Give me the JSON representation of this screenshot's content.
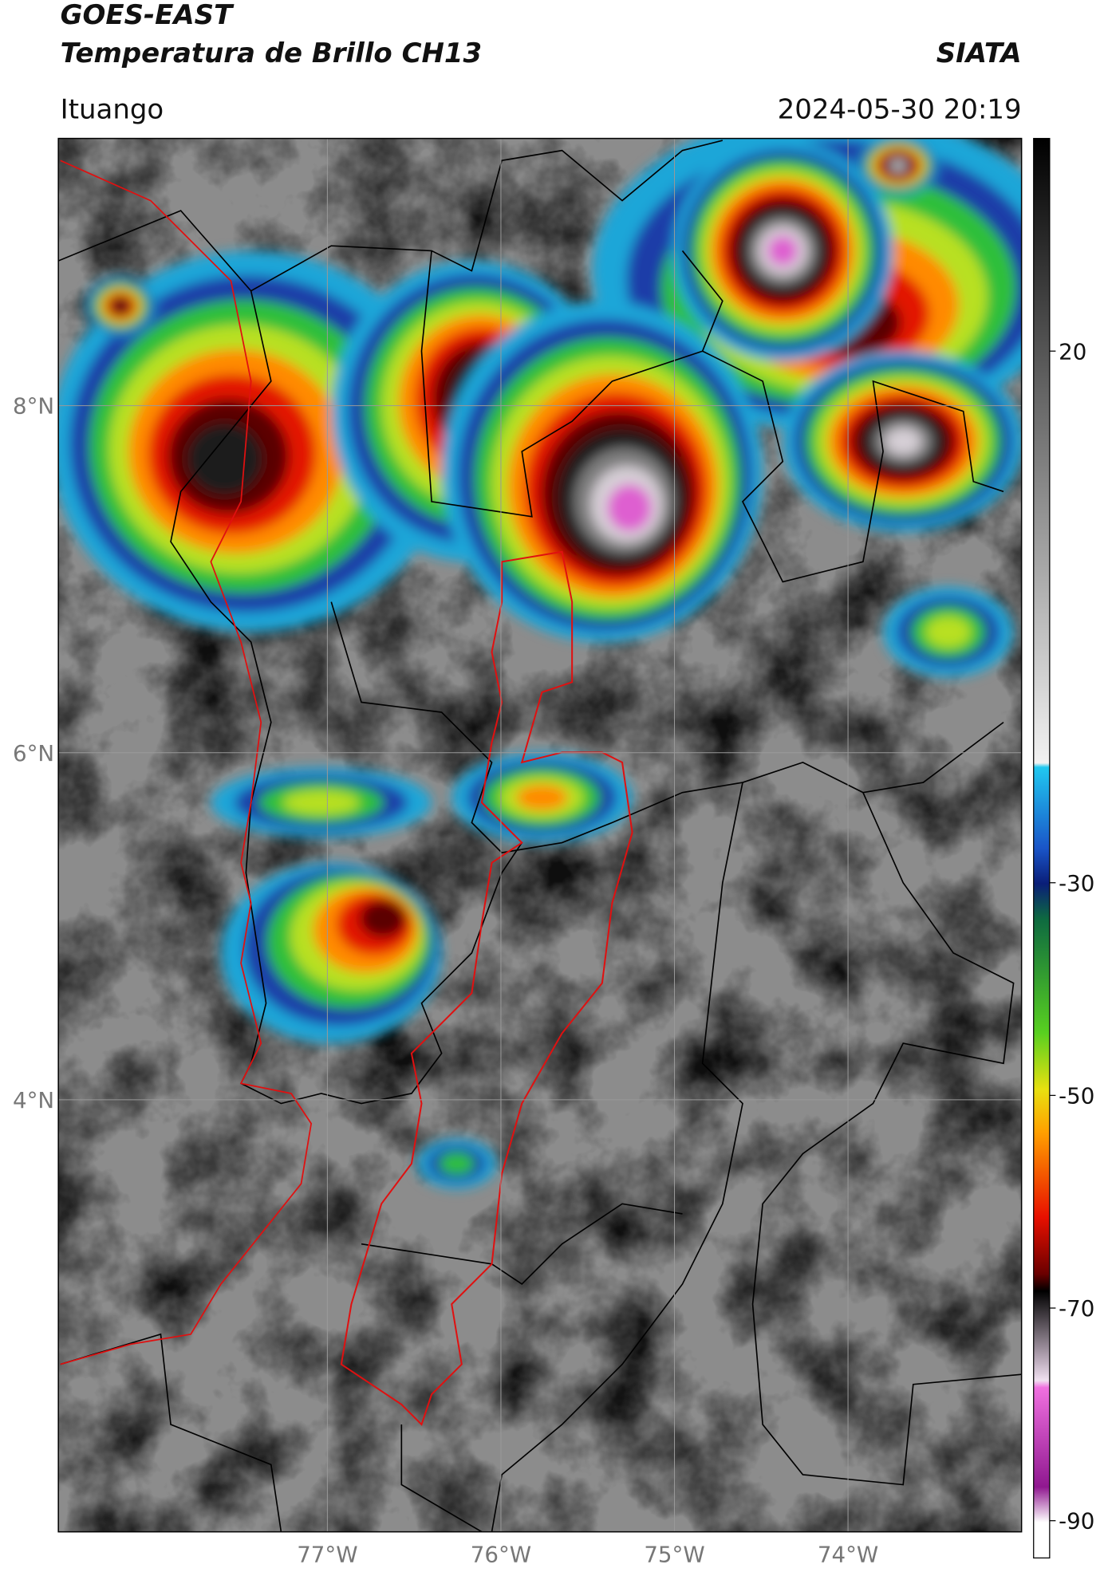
{
  "header": {
    "title": "GOES-EAST",
    "subtitle": "Temperatura de Brillo CH13",
    "brand": "SIATA",
    "location": "Ituango",
    "datetime": "2024-05-30 20:19"
  },
  "map": {
    "lon_range": [
      -78.55,
      -73.0
    ],
    "lat_range": [
      1.51,
      9.54
    ],
    "lat_ticks": [
      {
        "value": 8,
        "label": "8°N"
      },
      {
        "value": 6,
        "label": "6°N"
      },
      {
        "value": 4,
        "label": "4°N"
      }
    ],
    "lon_ticks": [
      {
        "value": -77,
        "label": "77°W"
      },
      {
        "value": -76,
        "label": "76°W"
      },
      {
        "value": -75,
        "label": "75°W"
      },
      {
        "value": -74,
        "label": "74°W"
      }
    ]
  },
  "colorbar": {
    "range": [
      40,
      -93.5
    ],
    "ticks": [
      20,
      -30,
      -50,
      -70,
      -90
    ]
  }
}
